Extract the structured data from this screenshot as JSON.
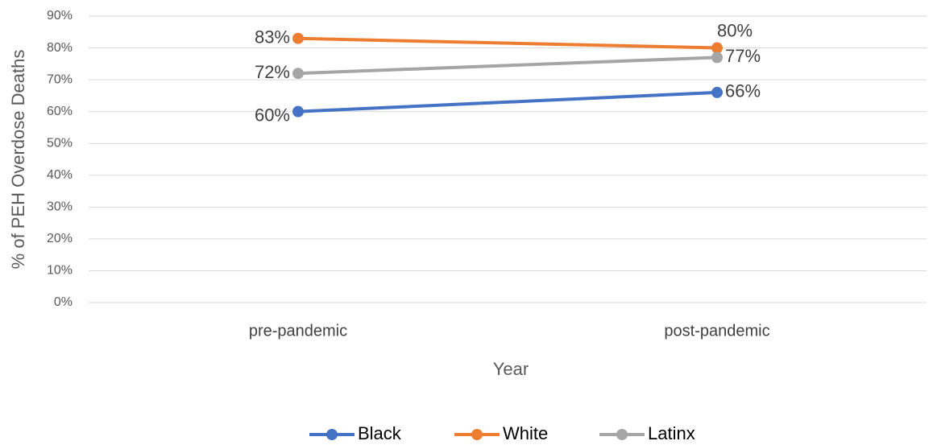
{
  "chart_data": {
    "type": "line",
    "y_label": "% of PEH Overdose Deaths",
    "x_label": "Year",
    "categories": [
      "pre-pandemic",
      "post-pandemic"
    ],
    "series": [
      {
        "name": "Black",
        "color": "#4472c4",
        "values": [
          60,
          66
        ],
        "value_labels": [
          "60%",
          "66%"
        ]
      },
      {
        "name": "White",
        "color": "#ed7d31",
        "values": [
          83,
          80
        ],
        "value_labels": [
          "83%",
          "80%"
        ]
      },
      {
        "name": "Latinx",
        "color": "#a5a5a5",
        "values": [
          72,
          77
        ],
        "value_labels": [
          "72%",
          "77%"
        ]
      }
    ],
    "ylim": [
      0,
      90
    ],
    "yticks": [
      {
        "value": 0,
        "label": "0%"
      },
      {
        "value": 10,
        "label": "10%"
      },
      {
        "value": 20,
        "label": "20%"
      },
      {
        "value": 30,
        "label": "30%"
      },
      {
        "value": 40,
        "label": "40%"
      },
      {
        "value": 50,
        "label": "50%"
      },
      {
        "value": 60,
        "label": "60%"
      },
      {
        "value": 70,
        "label": "70%"
      },
      {
        "value": 80,
        "label": "80%"
      },
      {
        "value": 90,
        "label": "90%"
      }
    ],
    "grid": true,
    "legend": "bottom"
  }
}
